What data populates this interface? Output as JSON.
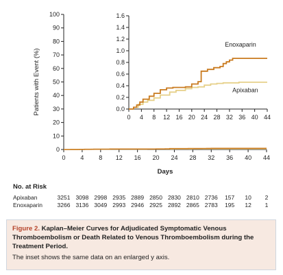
{
  "chart_data": [
    {
      "type": "line",
      "ylabel": "Patients with Event (%)",
      "xlabel": "Days",
      "xlim": [
        0,
        44
      ],
      "ylim": [
        0,
        100
      ],
      "x_ticks": [
        0,
        4,
        8,
        12,
        16,
        20,
        24,
        28,
        32,
        36,
        40,
        44
      ],
      "y_ticks": [
        0,
        10,
        20,
        30,
        40,
        50,
        60,
        70,
        80,
        90,
        100
      ],
      "series": [
        {
          "name": "Enoxaparin",
          "color": "#c97a1e",
          "x": [
            0,
            1.5,
            2.5,
            3.5,
            4.5,
            6.5,
            8,
            10,
            12,
            14,
            18,
            20,
            22,
            23,
            25,
            27,
            29,
            30,
            31,
            32,
            33,
            35,
            37,
            40,
            44
          ],
          "y": [
            0,
            0.03,
            0.07,
            0.12,
            0.17,
            0.22,
            0.27,
            0.33,
            0.36,
            0.37,
            0.38,
            0.43,
            0.47,
            0.65,
            0.68,
            0.71,
            0.73,
            0.78,
            0.81,
            0.84,
            0.87,
            0.87,
            0.87,
            0.87,
            0.87
          ]
        },
        {
          "name": "Apixaban",
          "color": "#e6d089",
          "x": [
            0,
            1.5,
            3,
            4.5,
            6,
            8,
            10,
            13,
            15,
            18,
            20,
            22,
            24,
            26,
            28,
            30,
            32,
            35,
            40,
            44
          ],
          "y": [
            0,
            0.03,
            0.08,
            0.12,
            0.15,
            0.19,
            0.24,
            0.29,
            0.32,
            0.35,
            0.37,
            0.38,
            0.41,
            0.43,
            0.44,
            0.45,
            0.45,
            0.46,
            0.46,
            0.46
          ]
        }
      ]
    },
    {
      "type": "line",
      "inset": true,
      "xlim": [
        0,
        44
      ],
      "ylim": [
        0,
        1.6
      ],
      "x_ticks": [
        0,
        4,
        8,
        12,
        16,
        20,
        24,
        28,
        32,
        36,
        40,
        44
      ],
      "y_ticks": [
        "0.0",
        "0.2",
        "0.4",
        "0.6",
        "0.8",
        "1.0",
        "1.2",
        "1.4",
        "1.6"
      ],
      "series": [
        {
          "name": "Enoxaparin",
          "color": "#c97a1e",
          "x": [
            0,
            1.5,
            2.5,
            3.5,
            4.5,
            6.5,
            8,
            10,
            12,
            14,
            18,
            20,
            22,
            23,
            25,
            27,
            29,
            30,
            31,
            32,
            33,
            35,
            37,
            40,
            44
          ],
          "y": [
            0,
            0.03,
            0.07,
            0.12,
            0.17,
            0.22,
            0.27,
            0.33,
            0.36,
            0.37,
            0.38,
            0.43,
            0.47,
            0.65,
            0.68,
            0.71,
            0.73,
            0.78,
            0.81,
            0.84,
            0.87,
            0.87,
            0.87,
            0.87,
            0.87
          ]
        },
        {
          "name": "Apixaban",
          "color": "#e6d089",
          "x": [
            0,
            1.5,
            3,
            4.5,
            6,
            8,
            10,
            13,
            15,
            18,
            20,
            22,
            24,
            26,
            28,
            30,
            32,
            35,
            40,
            44
          ],
          "y": [
            0,
            0.03,
            0.08,
            0.12,
            0.15,
            0.19,
            0.24,
            0.29,
            0.32,
            0.35,
            0.37,
            0.38,
            0.41,
            0.43,
            0.44,
            0.45,
            0.45,
            0.46,
            0.46,
            0.46
          ]
        }
      ]
    }
  ],
  "risk_table": {
    "title": "No. at Risk",
    "rows": [
      {
        "label": "Apixaban",
        "values": [
          "3251",
          "3098",
          "2998",
          "2935",
          "2889",
          "2850",
          "2830",
          "2810",
          "2736",
          "157",
          "10",
          "2"
        ]
      },
      {
        "label": "Enoxaparin",
        "values": [
          "3266",
          "3136",
          "3049",
          "2993",
          "2946",
          "2925",
          "2892",
          "2865",
          "2783",
          "195",
          "12",
          "1"
        ]
      }
    ]
  },
  "caption": {
    "label": "Figure 2.",
    "title": "Kaplan–Meier Curves for Adjudicated Symptomatic Venous Thromboembolism or Death Related to Venous Thromboembolism during the Treatment Period.",
    "note": "The inset shows the same data on an enlarged y axis."
  }
}
